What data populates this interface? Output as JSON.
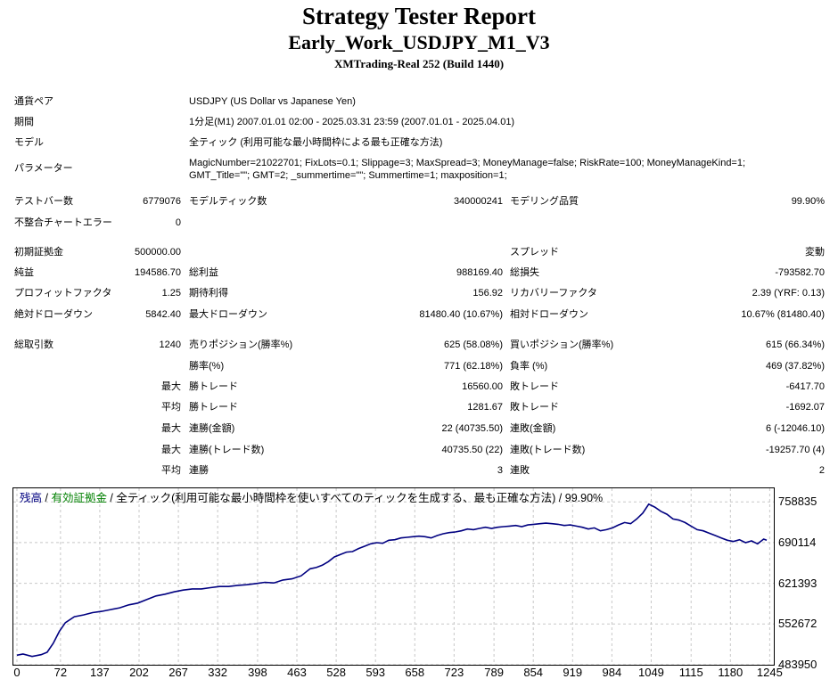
{
  "header": {
    "title": "Strategy Tester Report",
    "subtitle": "Early_Work_USDJPY_M1_V3",
    "server": "XMTrading-Real 252 (Build 1440)"
  },
  "info": {
    "symbol_label": "通貨ペア",
    "symbol_value": "USDJPY (US Dollar vs Japanese Yen)",
    "period_label": "期間",
    "period_value": "1分足(M1) 2007.01.01 02:00 - 2025.03.31 23:59 (2007.01.01 - 2025.04.01)",
    "model_label": "モデル",
    "model_value": "全ティック (利用可能な最小時間枠による最も正確な方法)",
    "params_label": "パラメーター",
    "params_line1": "MagicNumber=21022701; FixLots=0.1; Slippage=3; MaxSpread=3; MoneyManage=false; RiskRate=100; MoneyManageKind=1;",
    "params_line2": "GMT_Title=\"\"; GMT=2; _summertime=\"\"; Summertime=1; maxposition=1;"
  },
  "stats": {
    "bars_label": "テストバー数",
    "bars_value": "6779076",
    "ticks_label": "モデルティック数",
    "ticks_value": "340000241",
    "quality_label": "モデリング品質",
    "quality_value": "99.90%",
    "mismatch_label": "不整合チャートエラー",
    "mismatch_value": "0",
    "deposit_label": "初期証拠金",
    "deposit_value": "500000.00",
    "spread_label": "スプレッド",
    "spread_value": "変動",
    "net_label": "純益",
    "net_value": "194586.70",
    "gross_profit_label": "総利益",
    "gross_profit_value": "988169.40",
    "gross_loss_label": "総損失",
    "gross_loss_value": "-793582.70",
    "pf_label": "プロフィットファクタ",
    "pf_value": "1.25",
    "payoff_label": "期待利得",
    "payoff_value": "156.92",
    "recovery_label": "リカバリーファクタ",
    "recovery_value": "2.39 (YRF: 0.13)",
    "abs_dd_label": "絶対ドローダウン",
    "abs_dd_value": "5842.40",
    "max_dd_label": "最大ドローダウン",
    "max_dd_value": "81480.40 (10.67%)",
    "rel_dd_label": "相対ドローダウン",
    "rel_dd_value": "10.67% (81480.40)",
    "trades_label": "総取引数",
    "trades_value": "1240",
    "short_label": "売りポジション(勝率%)",
    "short_value": "625 (58.08%)",
    "long_label": "買いポジション(勝率%)",
    "long_value": "615 (66.34%)",
    "winrate_label": "勝率(%)",
    "winrate_value": "771 (62.18%)",
    "lossrate_label": "負率 (%)",
    "lossrate_value": "469 (37.82%)",
    "max_prefix": "最大",
    "avg_prefix": "平均",
    "largest_win_label": "勝トレード",
    "largest_win_value": "16560.00",
    "largest_loss_label": "敗トレード",
    "largest_loss_value": "-6417.70",
    "avg_win_label": "勝トレード",
    "avg_win_value": "1281.67",
    "avg_loss_label": "敗トレード",
    "avg_loss_value": "-1692.07",
    "max_cons_wins_label": "連勝(金額)",
    "max_cons_wins_value": "22 (40735.50)",
    "max_cons_losses_label": "連敗(金額)",
    "max_cons_losses_value": "6 (-12046.10)",
    "max_cons_profit_label": "連勝(トレード数)",
    "max_cons_profit_value": "40735.50 (22)",
    "max_cons_loss_label": "連敗(トレード数)",
    "max_cons_loss_value": "-19257.70 (4)",
    "avg_cons_wins_label": "連勝",
    "avg_cons_wins_value": "3",
    "avg_cons_losses_label": "連敗",
    "avg_cons_losses_value": "2"
  },
  "chart_legend": {
    "balance": "残高",
    "sep1": " / ",
    "equity": "有効証拠金",
    "rest": " / 全ティック(利用可能な最小時間枠を使いすべてのティックを生成する、最も正確な方法) / 99.90%",
    "balance_color": "#000080",
    "equity_color": "#008000"
  },
  "chart_data": {
    "type": "line",
    "title": "",
    "xlabel": "",
    "ylabel": "",
    "xlim": [
      0,
      1240
    ],
    "ylim": [
      483950,
      781742
    ],
    "x_ticks": [
      0,
      72,
      137,
      202,
      267,
      332,
      398,
      463,
      528,
      593,
      658,
      723,
      789,
      854,
      919,
      984,
      1049,
      1115,
      1180,
      1245
    ],
    "y_ticks": [
      483950,
      552672,
      621393,
      690114,
      758835
    ],
    "grid": true,
    "line_color": "#000080",
    "series": [
      {
        "x": [
          0,
          10,
          25,
          40,
          50,
          60,
          70,
          80,
          95,
          110,
          125,
          140,
          155,
          170,
          185,
          200,
          215,
          230,
          245,
          260,
          275,
          290,
          305,
          320,
          335,
          350,
          365,
          380,
          395,
          410,
          425,
          440,
          455,
          470,
          485,
          495,
          505,
          515,
          525,
          535,
          545,
          555,
          565,
          575,
          585,
          595,
          605,
          615,
          625,
          635,
          645,
          655,
          665,
          675,
          685,
          695,
          705,
          715,
          725,
          735,
          745,
          755,
          765,
          775,
          785,
          795,
          805,
          815,
          825,
          835,
          845,
          855,
          865,
          875,
          885,
          895,
          905,
          915,
          925,
          935,
          945,
          955,
          965,
          975,
          985,
          995,
          1005,
          1015,
          1025,
          1035,
          1045,
          1055,
          1065,
          1075,
          1085,
          1095,
          1105,
          1115,
          1125,
          1135,
          1145,
          1155,
          1165,
          1175,
          1185,
          1195,
          1205,
          1215,
          1225,
          1235,
          1240
        ],
        "y": [
          500000,
          502000,
          498000,
          501000,
          505000,
          520000,
          540000,
          555000,
          565000,
          568000,
          572000,
          574000,
          577000,
          580000,
          585000,
          588000,
          594000,
          600000,
          603000,
          607000,
          610000,
          612000,
          612000,
          614000,
          616000,
          616000,
          618000,
          619000,
          621000,
          623000,
          622000,
          627000,
          629000,
          634000,
          646000,
          648000,
          652000,
          658000,
          666000,
          670000,
          674000,
          675000,
          680000,
          684000,
          688000,
          690000,
          689000,
          694000,
          695000,
          698000,
          699000,
          700000,
          701000,
          700000,
          698000,
          702000,
          705000,
          707000,
          708000,
          710000,
          713000,
          712000,
          714000,
          716000,
          714000,
          716000,
          717000,
          718000,
          719000,
          717000,
          720000,
          721000,
          722000,
          723000,
          722000,
          721000,
          719000,
          720000,
          718000,
          716000,
          713000,
          715000,
          710000,
          712000,
          715000,
          720000,
          724000,
          722000,
          730000,
          740000,
          755000,
          750000,
          743000,
          738000,
          730000,
          728000,
          724000,
          718000,
          712000,
          710000,
          706000,
          702000,
          698000,
          694000,
          692000,
          695000,
          690000,
          693000,
          688000,
          696000,
          694000
        ]
      }
    ]
  }
}
